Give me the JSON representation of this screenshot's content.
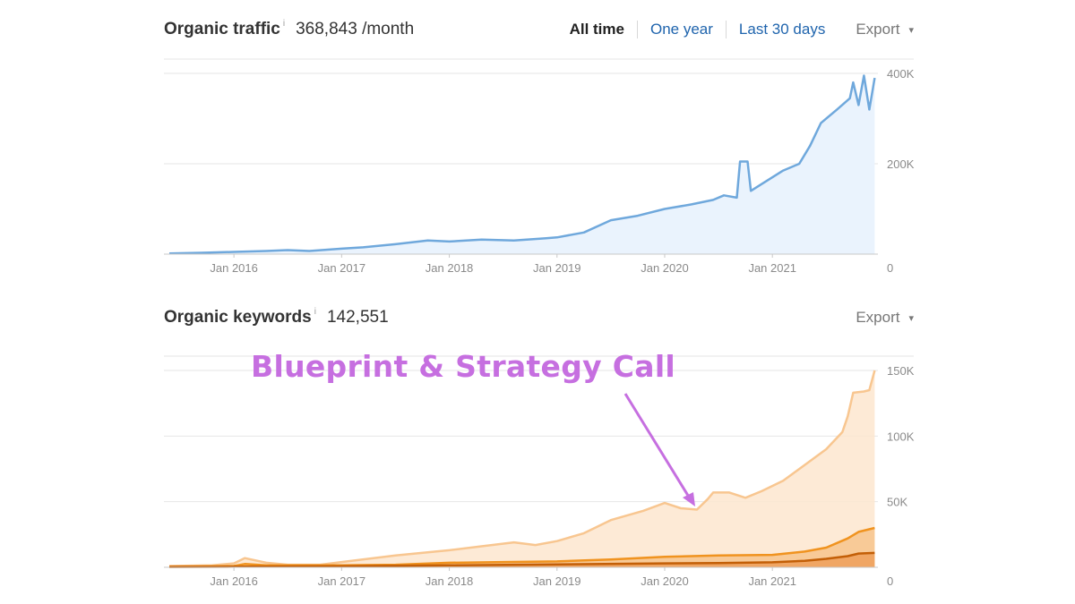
{
  "traffic": {
    "title": "Organic traffic",
    "info_icon": "i",
    "value": "368,843 /month",
    "tabs": [
      {
        "label": "All time",
        "active": true
      },
      {
        "label": "One year",
        "active": false
      },
      {
        "label": "Last 30 days",
        "active": false
      }
    ],
    "export_label": "Export",
    "export_icon": "▾"
  },
  "keywords": {
    "title": "Organic keywords",
    "info_icon": "i",
    "value": "142,551",
    "export_label": "Export",
    "export_icon": "▾"
  },
  "annotation": {
    "text": "Blueprint & Strategy Call",
    "color": "#c66fe0"
  },
  "chart_data": [
    {
      "type": "line",
      "color": "#6fa8dc",
      "fill": "#eaf3fd",
      "grid": true,
      "xlim": [
        2015.35,
        2021.98
      ],
      "ylim": [
        0,
        400000
      ],
      "xticks": [
        {
          "x": 2016,
          "label": "Jan 2016"
        },
        {
          "x": 2017,
          "label": "Jan 2017"
        },
        {
          "x": 2018,
          "label": "Jan 2018"
        },
        {
          "x": 2019,
          "label": "Jan 2019"
        },
        {
          "x": 2020,
          "label": "Jan 2020"
        },
        {
          "x": 2021,
          "label": "Jan 2021"
        }
      ],
      "yticks": [
        {
          "y": 0,
          "label": "0"
        },
        {
          "y": 200000,
          "label": "200K"
        },
        {
          "y": 400000,
          "label": "400K"
        }
      ],
      "series": [
        {
          "x": [
            2015.4,
            2015.7,
            2016.0,
            2016.3,
            2016.5,
            2016.7,
            2017.0,
            2017.2,
            2017.5,
            2017.8,
            2018.0,
            2018.3,
            2018.6,
            2018.9,
            2019.0,
            2019.25,
            2019.5,
            2019.75,
            2020.0,
            2020.25,
            2020.45,
            2020.55,
            2020.67,
            2020.7,
            2020.77,
            2020.8,
            2020.9,
            2021.1,
            2021.25,
            2021.35,
            2021.45,
            2021.6,
            2021.72,
            2021.75,
            2021.8,
            2021.85,
            2021.9,
            2021.95
          ],
          "y": [
            1500,
            3000,
            5000,
            7000,
            9000,
            7000,
            12000,
            15000,
            22000,
            30000,
            28000,
            32000,
            30000,
            35000,
            37000,
            48000,
            75000,
            85000,
            100000,
            110000,
            120000,
            130000,
            125000,
            205000,
            205000,
            140000,
            155000,
            185000,
            200000,
            240000,
            290000,
            320000,
            345000,
            380000,
            330000,
            395000,
            320000,
            390000
          ]
        }
      ]
    },
    {
      "type": "area",
      "grid": true,
      "xlim": [
        2015.35,
        2021.98
      ],
      "ylim": [
        0,
        150000
      ],
      "xticks": [
        {
          "x": 2016,
          "label": "Jan 2016"
        },
        {
          "x": 2017,
          "label": "Jan 2017"
        },
        {
          "x": 2018,
          "label": "Jan 2018"
        },
        {
          "x": 2019,
          "label": "Jan 2019"
        },
        {
          "x": 2020,
          "label": "Jan 2020"
        },
        {
          "x": 2021,
          "label": "Jan 2021"
        }
      ],
      "yticks": [
        {
          "y": 0,
          "label": "0"
        },
        {
          "y": 50000,
          "label": "50K"
        },
        {
          "y": 100000,
          "label": "100K"
        },
        {
          "y": 150000,
          "label": "150K"
        }
      ],
      "series": [
        {
          "color": "#f8c690",
          "fill": "#fde6cf",
          "x": [
            2015.4,
            2015.8,
            2016.0,
            2016.1,
            2016.3,
            2016.5,
            2016.8,
            2017.0,
            2017.5,
            2018.0,
            2018.3,
            2018.6,
            2018.8,
            2019.0,
            2019.25,
            2019.5,
            2019.8,
            2020.0,
            2020.15,
            2020.3,
            2020.4,
            2020.45,
            2020.6,
            2020.75,
            2020.9,
            2021.1,
            2021.3,
            2021.5,
            2021.65,
            2021.7,
            2021.75,
            2021.85,
            2021.9,
            2021.95
          ],
          "y": [
            1000,
            1500,
            3000,
            7000,
            3500,
            2000,
            2000,
            4000,
            9000,
            13000,
            16000,
            19000,
            17000,
            20000,
            26000,
            36000,
            43000,
            49000,
            45000,
            44000,
            52000,
            57000,
            57000,
            53000,
            58000,
            66000,
            78000,
            90000,
            103000,
            115000,
            133000,
            134000,
            135000,
            150000
          ]
        },
        {
          "color": "#f0931f",
          "fill": "#f7c48c",
          "x": [
            2015.4,
            2016.0,
            2016.1,
            2016.3,
            2017.0,
            2017.5,
            2018.0,
            2018.5,
            2019.0,
            2019.5,
            2020.0,
            2020.5,
            2021.0,
            2021.3,
            2021.5,
            2021.7,
            2021.8,
            2021.95
          ],
          "y": [
            500,
            1000,
            2500,
            1500,
            1500,
            2000,
            3500,
            4000,
            4500,
            6000,
            8000,
            9000,
            9500,
            12000,
            15000,
            22000,
            27000,
            30000
          ]
        },
        {
          "color": "#c35f07",
          "fill": "#efa05a",
          "x": [
            2015.4,
            2016.0,
            2017.0,
            2018.0,
            2019.0,
            2020.0,
            2020.5,
            2021.0,
            2021.3,
            2021.5,
            2021.7,
            2021.8,
            2021.95
          ],
          "y": [
            300,
            500,
            800,
            1500,
            2200,
            3000,
            3200,
            3800,
            5000,
            6500,
            8500,
            10500,
            11000
          ]
        }
      ]
    }
  ]
}
